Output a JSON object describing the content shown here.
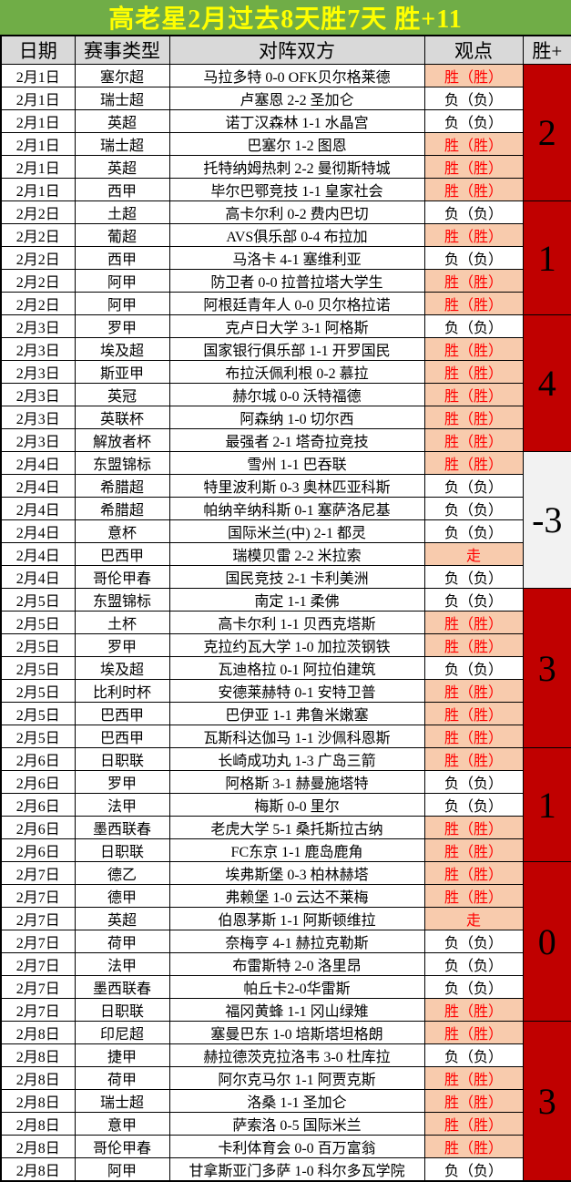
{
  "title": "高老星2月过去8天胜7天 胜+11",
  "columns": [
    "日期",
    "赛事类型",
    "对阵双方",
    "观点",
    "胜+"
  ],
  "colors": {
    "title_bg": "#70AD47",
    "title_text": "#FFFF00",
    "header_bg": "#D9D9D9",
    "highlight_bg": "#F8CBAD",
    "highlight_text": "#FF0000",
    "total_bg_red": "#C00000",
    "total_bg_gray": "#F2F2F2"
  },
  "groups": [
    {
      "total": "2",
      "total_theme": "red",
      "rows": [
        {
          "date": "2月1日",
          "league": "塞尔超",
          "match": "马拉多特 0-0 OFK贝尔格莱德",
          "view": "胜（胜）",
          "hl": true
        },
        {
          "date": "2月1日",
          "league": "瑞士超",
          "match": "卢塞恩 2-2 圣加仑",
          "view": "负（负）",
          "hl": false
        },
        {
          "date": "2月1日",
          "league": "英超",
          "match": "诺丁汉森林 1-1 水晶宫",
          "view": "负（负）",
          "hl": false
        },
        {
          "date": "2月1日",
          "league": "瑞士超",
          "match": "巴塞尔 1-2 图恩",
          "view": "胜（胜）",
          "hl": true
        },
        {
          "date": "2月1日",
          "league": "英超",
          "match": "托特纳姆热刺 2-2 曼彻斯特城",
          "view": "胜（胜）",
          "hl": true
        },
        {
          "date": "2月1日",
          "league": "西甲",
          "match": "毕尔巴鄂竞技 1-1 皇家社会",
          "view": "胜（胜）",
          "hl": true
        }
      ]
    },
    {
      "total": "1",
      "total_theme": "red",
      "rows": [
        {
          "date": "2月2日",
          "league": "土超",
          "match": "高卡尔利 0-2 费内巴切",
          "view": "负（负）",
          "hl": false
        },
        {
          "date": "2月2日",
          "league": "葡超",
          "match": "AVS俱乐部 0-4 布拉加",
          "view": "胜（胜）",
          "hl": true
        },
        {
          "date": "2月2日",
          "league": "西甲",
          "match": "马洛卡 4-1 塞维利亚",
          "view": "负（负）",
          "hl": false
        },
        {
          "date": "2月2日",
          "league": "阿甲",
          "match": "防卫者 0-0 拉普拉塔大学生",
          "view": "胜（胜）",
          "hl": true
        },
        {
          "date": "2月2日",
          "league": "阿甲",
          "match": "阿根廷青年人 0-0 贝尔格拉诺",
          "view": "胜（胜）",
          "hl": true
        }
      ]
    },
    {
      "total": "4",
      "total_theme": "red",
      "rows": [
        {
          "date": "2月3日",
          "league": "罗甲",
          "match": "克卢日大学 3-1 阿格斯",
          "view": "负（负）",
          "hl": false
        },
        {
          "date": "2月3日",
          "league": "埃及超",
          "match": "国家银行俱乐部 1-1 开罗国民",
          "view": "胜（胜）",
          "hl": true
        },
        {
          "date": "2月3日",
          "league": "斯亚甲",
          "match": "布拉沃佩利根 0-2 慕拉",
          "view": "胜（胜）",
          "hl": true
        },
        {
          "date": "2月3日",
          "league": "英冠",
          "match": "赫尔城 0-0 沃特福德",
          "view": "胜（胜）",
          "hl": true
        },
        {
          "date": "2月3日",
          "league": "英联杯",
          "match": "阿森纳 1-0 切尔西",
          "view": "胜（胜）",
          "hl": true
        },
        {
          "date": "2月3日",
          "league": "解放者杯",
          "match": "最强者 2-1 塔奇拉竞技",
          "view": "胜（胜）",
          "hl": true
        }
      ]
    },
    {
      "total": "-3",
      "total_theme": "gray",
      "rows": [
        {
          "date": "2月4日",
          "league": "东盟锦标",
          "match": "雪州 1-1 巴吞联",
          "view": "胜（胜）",
          "hl": true
        },
        {
          "date": "2月4日",
          "league": "希腊超",
          "match": "特里波利斯 0-3 奥林匹亚科斯",
          "view": "负（负）",
          "hl": false
        },
        {
          "date": "2月4日",
          "league": "希腊超",
          "match": "帕纳辛纳科斯 0-1 塞萨洛尼基",
          "view": "负（负）",
          "hl": false
        },
        {
          "date": "2月4日",
          "league": "意杯",
          "match": "国际米兰(中) 2-1 都灵",
          "view": "负（负）",
          "hl": false
        },
        {
          "date": "2月4日",
          "league": "巴西甲",
          "match": "瑞模贝雷 2-2 米拉索",
          "view": "走",
          "hl": true
        },
        {
          "date": "2月4日",
          "league": "哥伦甲春",
          "match": "国民竞技 2-1 卡利美洲",
          "view": "负（负）",
          "hl": false
        }
      ]
    },
    {
      "total": "3",
      "total_theme": "red",
      "rows": [
        {
          "date": "2月5日",
          "league": "东盟锦标",
          "match": "南定 1-1 柔佛",
          "view": "负（负）",
          "hl": false
        },
        {
          "date": "2月5日",
          "league": "土杯",
          "match": "高卡尔利 1-1 贝西克塔斯",
          "view": "胜（胜）",
          "hl": true
        },
        {
          "date": "2月5日",
          "league": "罗甲",
          "match": "克拉约瓦大学 1-0 加拉茨钢铁",
          "view": "胜（胜）",
          "hl": true
        },
        {
          "date": "2月5日",
          "league": "埃及超",
          "match": "瓦迪格拉 0-1 阿拉伯建筑",
          "view": "负（负）",
          "hl": false
        },
        {
          "date": "2月5日",
          "league": "比利时杯",
          "match": "安德莱赫特 0-1 安特卫普",
          "view": "胜（胜）",
          "hl": true
        },
        {
          "date": "2月5日",
          "league": "巴西甲",
          "match": "巴伊亚 1-1 弗鲁米嫩塞",
          "view": "胜（胜）",
          "hl": true
        },
        {
          "date": "2月5日",
          "league": "巴西甲",
          "match": "瓦斯科达伽马 1-1 沙佩科恩斯",
          "view": "胜（胜）",
          "hl": true
        }
      ]
    },
    {
      "total": "1",
      "total_theme": "red",
      "rows": [
        {
          "date": "2月6日",
          "league": "日职联",
          "match": "长崎成功丸 1-3 广岛三箭",
          "view": "胜（胜）",
          "hl": true
        },
        {
          "date": "2月6日",
          "league": "罗甲",
          "match": "阿格斯 3-1 赫曼施塔特",
          "view": "负（负）",
          "hl": false
        },
        {
          "date": "2月6日",
          "league": "法甲",
          "match": "梅斯 0-0 里尔",
          "view": "负（负）",
          "hl": false
        },
        {
          "date": "2月6日",
          "league": "墨西联春",
          "match": "老虎大学 5-1 桑托斯拉古纳",
          "view": "胜（胜）",
          "hl": true
        },
        {
          "date": "2月6日",
          "league": "日职联",
          "match": "FC东京 1-1 鹿岛鹿角",
          "view": "胜（胜）",
          "hl": true
        }
      ]
    },
    {
      "total": "0",
      "total_theme": "red",
      "rows": [
        {
          "date": "2月7日",
          "league": "德乙",
          "match": "埃弗斯堡 0-3 柏林赫塔",
          "view": "胜（胜）",
          "hl": true
        },
        {
          "date": "2月7日",
          "league": "德甲",
          "match": "弗赖堡 1-0 云达不莱梅",
          "view": "胜（胜）",
          "hl": true
        },
        {
          "date": "2月7日",
          "league": "英超",
          "match": "伯恩茅斯 1-1 阿斯顿维拉",
          "view": "走",
          "hl": true
        },
        {
          "date": "2月7日",
          "league": "荷甲",
          "match": "奈梅亨 4-1 赫拉克勒斯",
          "view": "负（负）",
          "hl": false
        },
        {
          "date": "2月7日",
          "league": "法甲",
          "match": "布雷斯特 2-0 洛里昂",
          "view": "负（负）",
          "hl": false
        },
        {
          "date": "2月7日",
          "league": "墨西联春",
          "match": "帕丘卡2-0华雷斯",
          "view": "负（负）",
          "hl": false
        },
        {
          "date": "2月7日",
          "league": "日职联",
          "match": "福冈黄蜂 1-1 冈山绿雉",
          "view": "胜（胜）",
          "hl": true
        }
      ]
    },
    {
      "total": "3",
      "total_theme": "red",
      "rows": [
        {
          "date": "2月8日",
          "league": "印尼超",
          "match": "塞曼巴东 1-0 培斯塔坦格朗",
          "view": "胜（胜）",
          "hl": true
        },
        {
          "date": "2月8日",
          "league": "捷甲",
          "match": "赫拉德茨克拉洛韦 3-0 杜库拉",
          "view": "负（负）",
          "hl": false
        },
        {
          "date": "2月8日",
          "league": "荷甲",
          "match": "阿尔克马尔 1-1 阿贾克斯",
          "view": "胜（胜）",
          "hl": true
        },
        {
          "date": "2月8日",
          "league": "瑞士超",
          "match": "洛桑 1-1 圣加仑",
          "view": "胜（胜）",
          "hl": true
        },
        {
          "date": "2月8日",
          "league": "意甲",
          "match": "萨索洛 0-5 国际米兰",
          "view": "胜（胜）",
          "hl": true
        },
        {
          "date": "2月8日",
          "league": "哥伦甲春",
          "match": "卡利体育会 0-0 百万富翁",
          "view": "胜（胜）",
          "hl": true
        },
        {
          "date": "2月8日",
          "league": "阿甲",
          "match": "甘拿斯亚门多萨 1-0 科尔多瓦学院",
          "view": "负（负）",
          "hl": false
        }
      ]
    }
  ]
}
